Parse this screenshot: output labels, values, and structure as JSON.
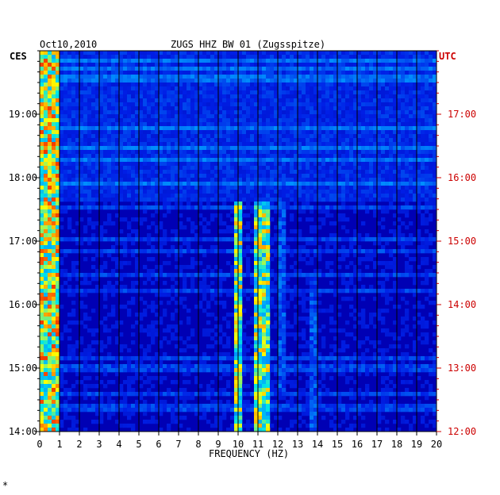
{
  "header": {
    "date": "Oct10,2010",
    "station": "ZUGS HHZ BW 01 (Zugsspitze)"
  },
  "left_timezone": "CES",
  "right_timezone": "UTC",
  "footer_mark": "*",
  "colors": {
    "background": "#0000b4",
    "right_axis": "#cc0000",
    "frame": "#000000"
  },
  "chart_data": {
    "type": "heatmap",
    "title": "ZUGS HHZ BW 01 (Zugsspitze)",
    "xlabel": "FREQUENCY (HZ)",
    "ylabel": "",
    "x_range": [
      0,
      20
    ],
    "x_ticks": [
      "0",
      "1",
      "2",
      "3",
      "4",
      "5",
      "6",
      "7",
      "8",
      "9",
      "10",
      "11",
      "12",
      "13",
      "14",
      "15",
      "16",
      "17",
      "18",
      "19",
      "20"
    ],
    "y_ticks_left": [
      "19:00",
      "18:00",
      "17:00",
      "16:00",
      "15:00",
      "14:00"
    ],
    "y_ticks_right": [
      "17:00",
      "16:00",
      "15:00",
      "14:00",
      "13:00",
      "12:00"
    ],
    "y_range_hours_local": [
      14.0,
      20.0
    ],
    "grid": true,
    "features": [
      {
        "name": "low-frequency band",
        "freq": [
          0.1,
          0.8
        ],
        "hours_local": [
          14.0,
          20.0
        ],
        "intensity": 0.9
      },
      {
        "name": "line 10 Hz",
        "freq": [
          9.9,
          10.2
        ],
        "hours_local": [
          14.0,
          17.6
        ],
        "intensity": 0.8
      },
      {
        "name": "line 11.2 Hz",
        "freq": [
          11.0,
          11.4
        ],
        "hours_local": [
          14.0,
          17.6
        ],
        "intensity": 0.8
      },
      {
        "name": "line 12.2 Hz",
        "freq": [
          12.1,
          12.3
        ],
        "hours_local": [
          14.6,
          17.6
        ],
        "intensity": 0.4
      },
      {
        "name": "line 13.9 Hz",
        "freq": [
          13.8,
          14.0
        ],
        "hours_local": [
          14.0,
          16.5
        ],
        "intensity": 0.4
      }
    ]
  }
}
